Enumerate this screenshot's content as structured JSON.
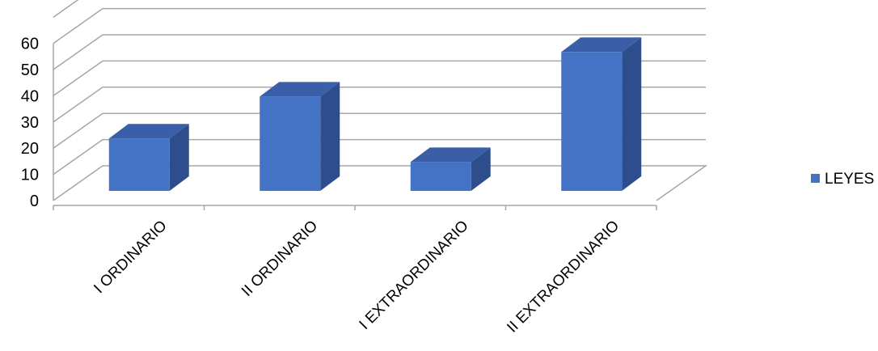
{
  "chart_data": {
    "type": "bar",
    "categories": [
      "I ORDINARIO",
      "II ORDINARIO",
      "I EXTRAORDINARIO",
      "II EXTRAORDINARIO"
    ],
    "series": [
      {
        "name": "LEYES",
        "values": [
          20,
          36,
          11,
          53
        ]
      }
    ],
    "yticks": [
      "0",
      "10",
      "20",
      "30",
      "40",
      "50",
      "60"
    ],
    "ylim": [
      0,
      70
    ],
    "grid": true,
    "three_d": true,
    "legend": "right",
    "colors": {
      "bar_front": "#4472c4",
      "bar_side": "#2e4d8c",
      "bar_top": "#3a5fa8",
      "grid": "#a6a6a6"
    }
  }
}
